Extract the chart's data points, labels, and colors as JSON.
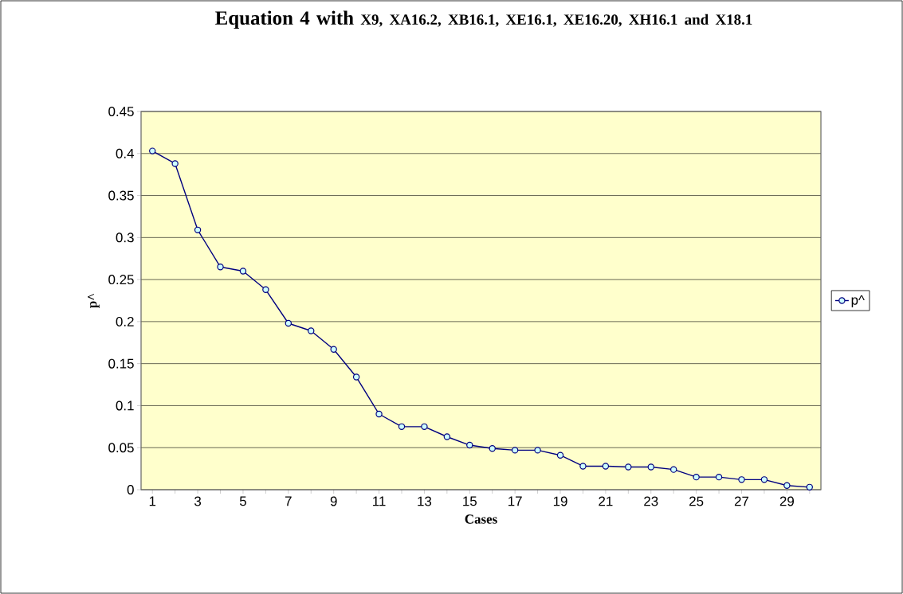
{
  "chart_data": {
    "type": "line",
    "title": "Equation 4 with",
    "subtitle": "X9, XA16.2, XB16.1, XE16.1, XE16.20, XH16.1 and X18.1",
    "xlabel": "Cases",
    "ylabel": "p^",
    "categories": [
      "1",
      null,
      "3",
      null,
      "5",
      null,
      "7",
      null,
      "9",
      null,
      "11",
      null,
      "13",
      null,
      "15",
      null,
      "17",
      null,
      "19",
      null,
      "21",
      null,
      "23",
      null,
      "25",
      null,
      "27",
      null,
      "29",
      null
    ],
    "series": [
      {
        "name": "p^",
        "color": "#000080",
        "values": [
          0.403,
          0.388,
          0.309,
          0.265,
          0.26,
          0.238,
          0.198,
          0.189,
          0.167,
          0.134,
          0.09,
          0.075,
          0.075,
          0.063,
          0.053,
          0.049,
          0.047,
          0.047,
          0.041,
          0.028,
          0.028,
          0.027,
          0.027,
          0.024,
          0.015,
          0.015,
          0.012,
          0.012,
          0.005,
          0.003
        ]
      }
    ],
    "ylim": [
      0,
      0.45
    ],
    "yticks": [
      0,
      0.05,
      0.1,
      0.15,
      0.2,
      0.25,
      0.3,
      0.35,
      0.4,
      0.45
    ],
    "grid": "y",
    "legend": "right",
    "marker": "circle",
    "line_style": "solid"
  }
}
